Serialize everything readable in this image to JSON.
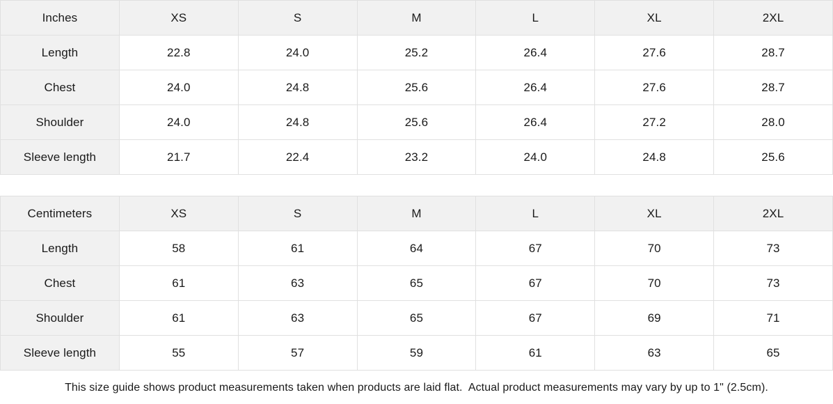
{
  "tables": [
    {
      "unit_label": "Inches",
      "sizes": [
        "XS",
        "S",
        "M",
        "L",
        "XL",
        "2XL"
      ],
      "rows": [
        {
          "label": "Length",
          "values": [
            "22.8",
            "24.0",
            "25.2",
            "26.4",
            "27.6",
            "28.7"
          ]
        },
        {
          "label": "Chest",
          "values": [
            "24.0",
            "24.8",
            "25.6",
            "26.4",
            "27.6",
            "28.7"
          ]
        },
        {
          "label": "Shoulder",
          "values": [
            "24.0",
            "24.8",
            "25.6",
            "26.4",
            "27.2",
            "28.0"
          ]
        },
        {
          "label": "Sleeve length",
          "values": [
            "21.7",
            "22.4",
            "23.2",
            "24.0",
            "24.8",
            "25.6"
          ]
        }
      ]
    },
    {
      "unit_label": "Centimeters",
      "sizes": [
        "XS",
        "S",
        "M",
        "L",
        "XL",
        "2XL"
      ],
      "rows": [
        {
          "label": "Length",
          "values": [
            "58",
            "61",
            "64",
            "67",
            "70",
            "73"
          ]
        },
        {
          "label": "Chest",
          "values": [
            "61",
            "63",
            "65",
            "67",
            "70",
            "73"
          ]
        },
        {
          "label": "Shoulder",
          "values": [
            "61",
            "63",
            "65",
            "67",
            "69",
            "71"
          ]
        },
        {
          "label": "Sleeve length",
          "values": [
            "55",
            "57",
            "59",
            "61",
            "63",
            "65"
          ]
        }
      ]
    }
  ],
  "footer": {
    "note": "This size guide shows product measurements taken when products are laid flat.  Actual product measurements may vary by up to 1\" (2.5cm)."
  },
  "colors": {
    "header_bg": "#f1f1f1",
    "cell_bg": "#ffffff",
    "border": "#e0e0e0",
    "text": "#1a1a1a"
  }
}
